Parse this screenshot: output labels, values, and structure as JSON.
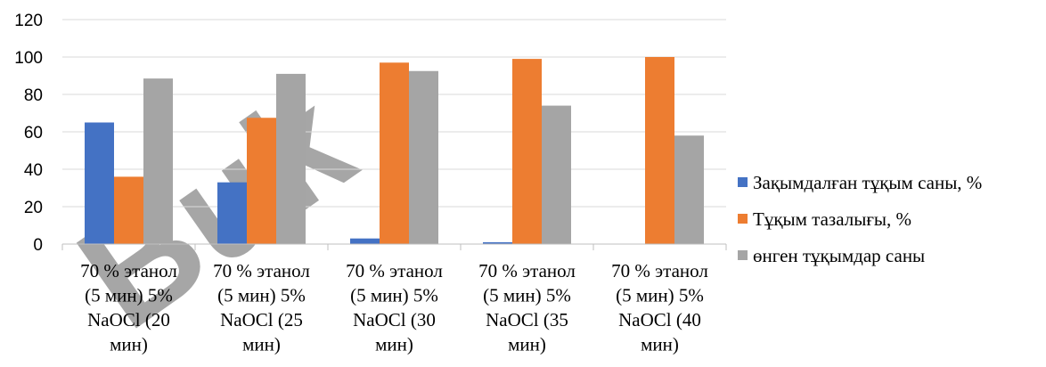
{
  "chart_data": {
    "type": "bar",
    "categories": [
      [
        "70 % этанол",
        "(5 мин) 5%",
        "NaOCl (20",
        "мин)"
      ],
      [
        "70 % этанол",
        "(5 мин) 5%",
        "NaOCl (25",
        "мин)"
      ],
      [
        "70 % этанол",
        "(5 мин) 5%",
        "NaOCl (30",
        "мин)"
      ],
      [
        "70 % этанол",
        "(5 мин) 5%",
        "NaOCl (35",
        "мин)"
      ],
      [
        "70 % этанол",
        "(5 мин) 5%",
        "NaOCl (40",
        "мин)"
      ]
    ],
    "series": [
      {
        "name": "Зақымдалған тұқым саны, %",
        "color": "#4472C4",
        "values": [
          65,
          33,
          3,
          1,
          0
        ]
      },
      {
        "name": "Тұқым тазалығы, %",
        "color": "#ED7D31",
        "values": [
          36,
          67.5,
          97,
          99,
          100
        ]
      },
      {
        "name": "өнген тұқымдар саны",
        "color": "#A5A5A5",
        "values": [
          88.5,
          91,
          92.5,
          74,
          58
        ]
      }
    ],
    "ylim": [
      0,
      120
    ],
    "yticks": [
      0,
      20,
      40,
      60,
      80,
      100,
      120
    ],
    "grid": true,
    "legend_position": "right"
  },
  "watermark": "Buk"
}
